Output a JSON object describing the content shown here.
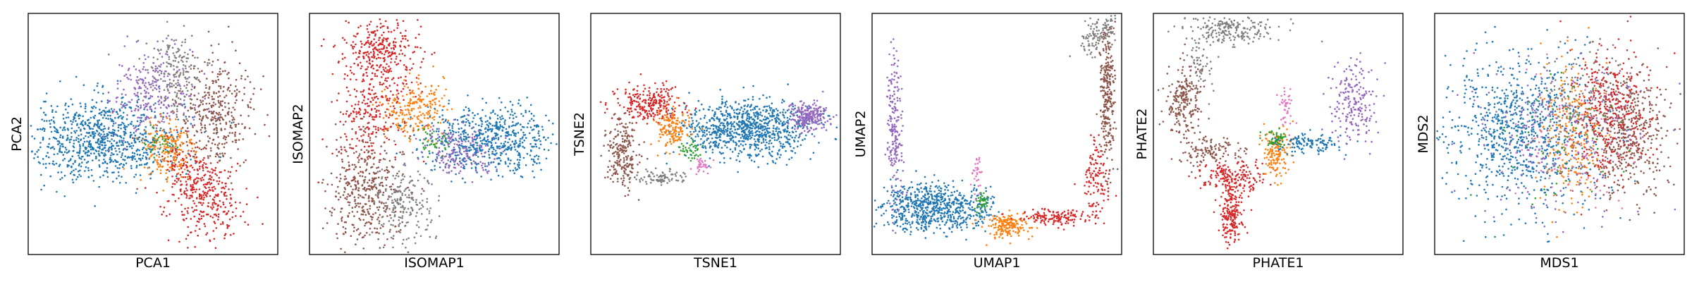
{
  "figure": {
    "panel_count": 6,
    "point_size_note": "small dots"
  },
  "chart_data": [
    {
      "type": "scatter",
      "title": "",
      "xlabel": "PCA1",
      "ylabel": "PCA2",
      "ticks": "hidden",
      "grid": false,
      "legend": "none",
      "xlim": [
        0,
        10
      ],
      "ylim": [
        0,
        10
      ],
      "series": [
        {
          "color": "#1f77b4",
          "clusters": [
            {
              "cx": 3.0,
              "cy": 4.8,
              "sx": 1.6,
              "sy": 0.85,
              "n": 900,
              "rot": 0
            }
          ]
        },
        {
          "color": "#9467bd",
          "clusters": [
            {
              "cx": 5.0,
              "cy": 6.6,
              "sx": 0.8,
              "sy": 1.0,
              "n": 280,
              "rot": 0
            }
          ]
        },
        {
          "color": "#8c564b",
          "clusters": [
            {
              "cx": 7.5,
              "cy": 5.8,
              "sx": 0.8,
              "sy": 1.1,
              "n": 380,
              "rot": 0
            }
          ]
        },
        {
          "color": "#7f7f7f",
          "clusters": [
            {
              "cx": 5.9,
              "cy": 7.6,
              "sx": 0.55,
              "sy": 0.8,
              "n": 160,
              "rot": 0
            }
          ]
        },
        {
          "color": "#ff7f0e",
          "clusters": [
            {
              "cx": 5.6,
              "cy": 4.3,
              "sx": 0.55,
              "sy": 0.75,
              "n": 200,
              "rot": 0
            }
          ]
        },
        {
          "color": "#d62728",
          "clusters": [
            {
              "cx": 7.0,
              "cy": 2.5,
              "sx": 0.7,
              "sy": 1.0,
              "n": 380,
              "rot": 0.5
            }
          ]
        },
        {
          "color": "#2ca02c",
          "clusters": [
            {
              "cx": 5.3,
              "cy": 4.6,
              "sx": 0.3,
              "sy": 0.3,
              "n": 30,
              "rot": 0
            }
          ]
        }
      ]
    },
    {
      "type": "scatter",
      "title": "",
      "xlabel": "ISOMAP1",
      "ylabel": "ISOMAP2",
      "ticks": "hidden",
      "grid": false,
      "legend": "none",
      "xlim": [
        0,
        10
      ],
      "ylim": [
        0,
        10
      ],
      "series": [
        {
          "color": "#d62728",
          "clusters": [
            {
              "cx": 2.8,
              "cy": 8.6,
              "sx": 0.7,
              "sy": 0.55,
              "n": 260,
              "rot": 0
            },
            {
              "cx": 2.6,
              "cy": 6.3,
              "sx": 0.7,
              "sy": 1.3,
              "n": 300,
              "rot": -0.3
            }
          ]
        },
        {
          "color": "#ff7f0e",
          "clusters": [
            {
              "cx": 4.2,
              "cy": 6.0,
              "sx": 0.6,
              "sy": 0.6,
              "n": 220,
              "rot": 0
            }
          ]
        },
        {
          "color": "#1f77b4",
          "clusters": [
            {
              "cx": 7.3,
              "cy": 4.8,
              "sx": 1.3,
              "sy": 0.65,
              "n": 650,
              "rot": 0
            }
          ]
        },
        {
          "color": "#9467bd",
          "clusters": [
            {
              "cx": 6.0,
              "cy": 4.3,
              "sx": 0.8,
              "sy": 0.5,
              "n": 180,
              "rot": 0
            }
          ]
        },
        {
          "color": "#8c564b",
          "clusters": [
            {
              "cx": 2.2,
              "cy": 2.6,
              "sx": 0.75,
              "sy": 1.2,
              "n": 420,
              "rot": 0
            }
          ]
        },
        {
          "color": "#7f7f7f",
          "clusters": [
            {
              "cx": 3.8,
              "cy": 2.2,
              "sx": 0.6,
              "sy": 0.8,
              "n": 200,
              "rot": 0
            }
          ]
        },
        {
          "color": "#2ca02c",
          "clusters": [
            {
              "cx": 5.0,
              "cy": 4.6,
              "sx": 0.35,
              "sy": 0.35,
              "n": 40,
              "rot": 0
            }
          ]
        }
      ]
    },
    {
      "type": "scatter",
      "title": "",
      "xlabel": "TSNE1",
      "ylabel": "TSNE2",
      "ticks": "hidden",
      "grid": false,
      "legend": "none",
      "xlim": [
        0,
        10
      ],
      "ylim": [
        0,
        10
      ],
      "series": [
        {
          "color": "#1f77b4",
          "clusters": [
            {
              "cx": 6.3,
              "cy": 5.2,
              "sx": 1.25,
              "sy": 0.6,
              "n": 900,
              "rot": 0
            }
          ]
        },
        {
          "color": "#9467bd",
          "clusters": [
            {
              "cx": 8.7,
              "cy": 5.7,
              "sx": 0.4,
              "sy": 0.3,
              "n": 220,
              "rot": 0
            }
          ]
        },
        {
          "color": "#d62728",
          "clusters": [
            {
              "cx": 2.3,
              "cy": 6.2,
              "sx": 0.65,
              "sy": 0.4,
              "n": 260,
              "rot": 0
            }
          ]
        },
        {
          "color": "#8c564b",
          "clusters": [
            {
              "cx": 1.3,
              "cy": 4.2,
              "sx": 0.35,
              "sy": 0.7,
              "n": 220,
              "rot": 0
            }
          ]
        },
        {
          "color": "#7f7f7f",
          "clusters": [
            {
              "cx": 2.8,
              "cy": 3.2,
              "sx": 0.55,
              "sy": 0.15,
              "n": 80,
              "rot": 0
            }
          ]
        },
        {
          "color": "#ff7f0e",
          "clusters": [
            {
              "cx": 3.2,
              "cy": 5.2,
              "sx": 0.35,
              "sy": 0.4,
              "n": 150,
              "rot": 0
            }
          ]
        },
        {
          "color": "#2ca02c",
          "clusters": [
            {
              "cx": 4.0,
              "cy": 4.3,
              "sx": 0.25,
              "sy": 0.2,
              "n": 40,
              "rot": 0
            }
          ]
        },
        {
          "color": "#e377c2",
          "clusters": [
            {
              "cx": 4.5,
              "cy": 3.7,
              "sx": 0.2,
              "sy": 0.15,
              "n": 35,
              "rot": 0
            }
          ]
        }
      ]
    },
    {
      "type": "scatter",
      "title": "",
      "xlabel": "UMAP1",
      "ylabel": "UMAP2",
      "ticks": "hidden",
      "grid": false,
      "legend": "none",
      "xlim": [
        0,
        10
      ],
      "ylim": [
        0,
        10
      ],
      "series": [
        {
          "color": "#1f77b4",
          "clusters": [
            {
              "cx": 2.0,
              "cy": 2.0,
              "sx": 0.8,
              "sy": 0.5,
              "n": 500,
              "rot": 0
            },
            {
              "cx": 3.8,
              "cy": 1.9,
              "sx": 0.6,
              "sy": 0.4,
              "n": 200,
              "rot": 0
            }
          ]
        },
        {
          "color": "#9467bd",
          "clusters": [
            {
              "cx": 0.9,
              "cy": 5.2,
              "sx": 0.15,
              "sy": 1.5,
              "n": 200,
              "rot": 0
            }
          ]
        },
        {
          "color": "#ff7f0e",
          "clusters": [
            {
              "cx": 5.4,
              "cy": 1.2,
              "sx": 0.45,
              "sy": 0.25,
              "n": 180,
              "rot": 0
            }
          ]
        },
        {
          "color": "#2ca02c",
          "clusters": [
            {
              "cx": 4.4,
              "cy": 2.2,
              "sx": 0.15,
              "sy": 0.2,
              "n": 40,
              "rot": 0
            }
          ]
        },
        {
          "color": "#e377c2",
          "clusters": [
            {
              "cx": 4.2,
              "cy": 3.3,
              "sx": 0.12,
              "sy": 0.4,
              "n": 30,
              "rot": 0
            }
          ]
        },
        {
          "color": "#d62728",
          "clusters": [
            {
              "cx": 7.3,
              "cy": 1.5,
              "sx": 0.7,
              "sy": 0.2,
              "n": 150,
              "rot": 0
            },
            {
              "cx": 9.0,
              "cy": 3.2,
              "sx": 0.25,
              "sy": 0.8,
              "n": 120,
              "rot": 0
            }
          ]
        },
        {
          "color": "#8c564b",
          "clusters": [
            {
              "cx": 9.4,
              "cy": 6.8,
              "sx": 0.15,
              "sy": 1.5,
              "n": 280,
              "rot": 0
            }
          ]
        },
        {
          "color": "#7f7f7f",
          "clusters": [
            {
              "cx": 9.1,
              "cy": 9.2,
              "sx": 0.3,
              "sy": 0.5,
              "n": 120,
              "rot": -0.6
            }
          ]
        }
      ]
    },
    {
      "type": "scatter",
      "title": "",
      "xlabel": "PHATE1",
      "ylabel": "PHATE2",
      "ticks": "hidden",
      "grid": false,
      "legend": "none",
      "xlim": [
        0,
        10
      ],
      "ylim": [
        0,
        10
      ],
      "series": [
        {
          "color": "#7f7f7f",
          "clusters": [
            {
              "cx": 3.0,
              "cy": 9.3,
              "sx": 1.0,
              "sy": 0.3,
              "n": 200,
              "rot": 0
            },
            {
              "cx": 1.9,
              "cy": 7.9,
              "sx": 0.25,
              "sy": 0.6,
              "n": 60,
              "rot": 0
            }
          ]
        },
        {
          "color": "#8c564b",
          "clusters": [
            {
              "cx": 1.2,
              "cy": 6.3,
              "sx": 0.35,
              "sy": 0.8,
              "n": 220,
              "rot": 0
            },
            {
              "cx": 2.2,
              "cy": 4.3,
              "sx": 0.6,
              "sy": 0.3,
              "n": 120,
              "rot": 0
            }
          ]
        },
        {
          "color": "#d62728",
          "clusters": [
            {
              "cx": 3.2,
              "cy": 3.2,
              "sx": 0.7,
              "sy": 0.35,
              "n": 180,
              "rot": 0
            },
            {
              "cx": 3.1,
              "cy": 1.7,
              "sx": 0.22,
              "sy": 0.7,
              "n": 200,
              "rot": 0
            }
          ]
        },
        {
          "color": "#ff7f0e",
          "clusters": [
            {
              "cx": 4.9,
              "cy": 4.3,
              "sx": 0.3,
              "sy": 0.5,
              "n": 150,
              "rot": 0
            }
          ]
        },
        {
          "color": "#2ca02c",
          "clusters": [
            {
              "cx": 4.9,
              "cy": 4.8,
              "sx": 0.25,
              "sy": 0.2,
              "n": 50,
              "rot": 0
            }
          ]
        },
        {
          "color": "#1f77b4",
          "clusters": [
            {
              "cx": 6.2,
              "cy": 4.6,
              "sx": 0.6,
              "sy": 0.2,
              "n": 120,
              "rot": 0
            }
          ]
        },
        {
          "color": "#e377c2",
          "clusters": [
            {
              "cx": 5.3,
              "cy": 6.2,
              "sx": 0.15,
              "sy": 0.5,
              "n": 40,
              "rot": 0
            }
          ]
        },
        {
          "color": "#9467bd",
          "clusters": [
            {
              "cx": 8.0,
              "cy": 6.2,
              "sx": 0.5,
              "sy": 0.8,
              "n": 200,
              "rot": 0
            }
          ]
        }
      ]
    },
    {
      "type": "scatter",
      "title": "",
      "xlabel": "MDS1",
      "ylabel": "MDS2",
      "ticks": "hidden",
      "grid": false,
      "legend": "none",
      "xlim": [
        0,
        10
      ],
      "ylim": [
        0,
        10
      ],
      "series": [
        {
          "color": "#1f77b4",
          "clusters": [
            {
              "cx": 3.5,
              "cy": 5.0,
              "sx": 1.5,
              "sy": 1.6,
              "n": 900,
              "rot": 0
            }
          ]
        },
        {
          "color": "#8c564b",
          "clusters": [
            {
              "cx": 7.8,
              "cy": 5.0,
              "sx": 0.8,
              "sy": 1.4,
              "n": 450,
              "rot": 0
            }
          ]
        },
        {
          "color": "#d62728",
          "clusters": [
            {
              "cx": 7.0,
              "cy": 5.8,
              "sx": 0.8,
              "sy": 1.3,
              "n": 380,
              "rot": 0
            }
          ]
        },
        {
          "color": "#ff7f0e",
          "clusters": [
            {
              "cx": 5.5,
              "cy": 5.0,
              "sx": 0.6,
              "sy": 1.4,
              "n": 250,
              "rot": 0
            }
          ]
        },
        {
          "color": "#9467bd",
          "clusters": [
            {
              "cx": 4.8,
              "cy": 5.0,
              "sx": 1.6,
              "sy": 1.6,
              "n": 220,
              "rot": 0
            }
          ]
        },
        {
          "color": "#e377c2",
          "clusters": [
            {
              "cx": 5.2,
              "cy": 5.0,
              "sx": 1.4,
              "sy": 1.5,
              "n": 90,
              "rot": 0
            }
          ]
        },
        {
          "color": "#7f7f7f",
          "clusters": [
            {
              "cx": 5.8,
              "cy": 6.5,
              "sx": 1.0,
              "sy": 1.0,
              "n": 120,
              "rot": 0
            }
          ]
        },
        {
          "color": "#2ca02c",
          "clusters": [
            {
              "cx": 5.5,
              "cy": 5.0,
              "sx": 1.2,
              "sy": 1.2,
              "n": 60,
              "rot": 0
            }
          ]
        }
      ]
    }
  ]
}
